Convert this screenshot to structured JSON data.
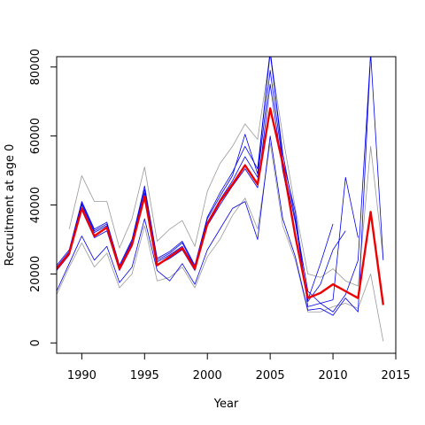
{
  "chart_data": {
    "type": "line",
    "title": "",
    "xlabel": "Year",
    "ylabel": "Recruitment at age 0",
    "xlim": [
      1988,
      2015
    ],
    "ylim": [
      -3000,
      83000
    ],
    "xticks": [
      1990,
      1995,
      2000,
      2005,
      2010,
      2015
    ],
    "yticks": [
      0,
      20000,
      40000,
      60000,
      80000
    ],
    "colors": {
      "main": "#ee0000",
      "retro": "#0000ee",
      "band": "#999999"
    },
    "series": [
      {
        "role": "main",
        "color": "#ee0000",
        "x": [
          1988,
          1989,
          1990,
          1991,
          1992,
          1993,
          1994,
          1995,
          1996,
          1997,
          1998,
          1999,
          2000,
          2001,
          2002,
          2003,
          2004,
          2005,
          2006,
          2007,
          2008,
          2009,
          2010,
          2011,
          2012,
          2013,
          2014
        ],
        "y": [
          21500,
          26000,
          39000,
          31000,
          33500,
          21500,
          28500,
          42500,
          22500,
          25000,
          27500,
          21500,
          34500,
          41000,
          46000,
          51500,
          46000,
          68000,
          52000,
          31000,
          13000,
          14500,
          17000,
          15000,
          13000,
          38000,
          11000
        ]
      },
      {
        "role": "band",
        "color": "#999999",
        "x": [
          1989,
          1990,
          1991,
          1992,
          1993,
          1994,
          1995,
          1996,
          1997,
          1998,
          1999,
          2000,
          2001,
          2002,
          2003,
          2004,
          2005,
          2006,
          2007,
          2008,
          2009,
          2010,
          2011,
          2012,
          2013,
          2014
        ],
        "y": [
          33000,
          48500,
          41000,
          41000,
          27500,
          36000,
          51000,
          29500,
          33000,
          35500,
          28000,
          44000,
          52000,
          57000,
          63500,
          59000,
          84000,
          60000,
          39000,
          20000,
          19000,
          21500,
          18000,
          16500,
          57000,
          24500
        ]
      },
      {
        "role": "band",
        "color": "#999999",
        "x": [
          1988,
          1989,
          1990,
          1991,
          1992,
          1993,
          1994,
          1995,
          1996,
          1997,
          1998,
          1999,
          2000,
          2001,
          2002,
          2003,
          2004,
          2005,
          2006,
          2007,
          2008,
          2009,
          2010,
          2011,
          2012,
          2013,
          2014
        ],
        "y": [
          14000,
          22000,
          29000,
          22000,
          26000,
          16000,
          20000,
          34000,
          18000,
          19000,
          22000,
          16000,
          25000,
          30000,
          37000,
          42000,
          33000,
          58000,
          34000,
          24000,
          9000,
          9000,
          10500,
          11500,
          10000,
          20000,
          500
        ]
      },
      {
        "role": "retro",
        "color": "#0000ee",
        "x": [
          1988,
          1989,
          1990,
          1991,
          1992,
          1993,
          1994,
          1995,
          1996,
          1997,
          1998,
          1999,
          2000,
          2001,
          2002,
          2003,
          2004,
          2005,
          2006,
          2007,
          2008,
          2009,
          2010
        ],
        "y": [
          22000,
          26500,
          40000,
          32000,
          34000,
          22000,
          29000,
          43500,
          23500,
          25500,
          28000,
          22000,
          35000,
          41500,
          47000,
          54000,
          48000,
          79000,
          52000,
          35000,
          12500,
          23000,
          34500
        ]
      },
      {
        "role": "retro",
        "color": "#0000ee",
        "x": [
          1988,
          1989,
          1990,
          1991,
          1992,
          1993,
          1994,
          1995,
          1996,
          1997,
          1998,
          1999,
          2000,
          2001,
          2002,
          2003,
          2004,
          2005,
          2006,
          2007,
          2008,
          2009,
          2010,
          2011
        ],
        "y": [
          21000,
          25500,
          38500,
          30500,
          32500,
          21000,
          28000,
          42000,
          22500,
          24500,
          27000,
          21000,
          34000,
          40000,
          45500,
          50500,
          45000,
          75000,
          50000,
          32000,
          12000,
          17000,
          27000,
          32500
        ]
      },
      {
        "role": "retro",
        "color": "#0000ee",
        "x": [
          1988,
          1989,
          1990,
          1991,
          1992,
          1993,
          1994,
          1995,
          1996,
          1997,
          1998,
          1999,
          2000,
          2001,
          2002,
          2003,
          2004,
          2005,
          2006,
          2007,
          2008,
          2009,
          2010,
          2011,
          2012
        ],
        "y": [
          22500,
          27000,
          41000,
          33000,
          35000,
          22500,
          30000,
          45500,
          24500,
          26500,
          29500,
          22500,
          36500,
          43500,
          49500,
          57000,
          50500,
          84000,
          55000,
          36000,
          15000,
          11500,
          12500,
          48000,
          30500
        ]
      },
      {
        "role": "retro",
        "color": "#0000ee",
        "x": [
          1988,
          1989,
          1990,
          1991,
          1992,
          1993,
          1994,
          1995,
          1996,
          1997,
          1998,
          1999,
          2000,
          2001,
          2002,
          2003,
          2004,
          2005,
          2006,
          2007,
          2008,
          2009,
          2010,
          2011,
          2012,
          2013
        ],
        "y": [
          21500,
          26500,
          40500,
          32500,
          34500,
          22000,
          29500,
          44500,
          24000,
          26000,
          29000,
          22000,
          36000,
          42500,
          48500,
          60500,
          49000,
          85000,
          53000,
          38000,
          10500,
          11500,
          9000,
          14000,
          24000,
          84000
        ]
      },
      {
        "role": "retro",
        "color": "#0000ee",
        "x": [
          1988,
          1989,
          1990,
          1991,
          1992,
          1993,
          1994,
          1995,
          1996,
          1997,
          1998,
          1999,
          2000,
          2001,
          2002,
          2003,
          2004,
          2005,
          2006,
          2007,
          2008,
          2009,
          2010,
          2011,
          2012,
          2013,
          2014
        ],
        "y": [
          15000,
          23000,
          31000,
          24000,
          28000,
          17500,
          22000,
          36000,
          21000,
          18000,
          23000,
          17000,
          27000,
          33000,
          39000,
          41000,
          30000,
          60000,
          36000,
          25000,
          9500,
          10000,
          8000,
          13000,
          9000,
          84000,
          24000
        ]
      }
    ]
  }
}
